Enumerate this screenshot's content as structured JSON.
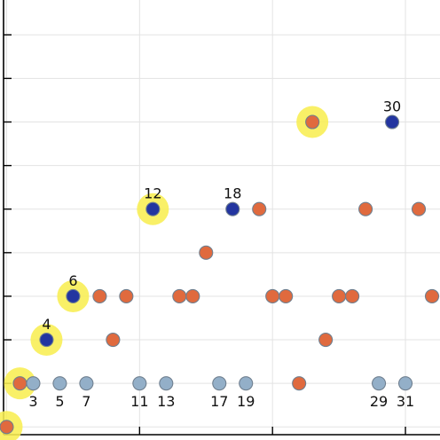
{
  "chart_data": {
    "type": "scatter",
    "title": "",
    "xlabel": "",
    "ylabel": "",
    "xlim": [
      -0.5,
      32.6
    ],
    "ylim": [
      0.7,
      10.8
    ],
    "x_ticks": [
      0,
      10,
      20,
      30
    ],
    "y_ticks": [
      1,
      2,
      3,
      4,
      5,
      6,
      7,
      8,
      9,
      10
    ],
    "grid": true,
    "series": [
      {
        "role": "orange points",
        "color": "#e06a3e",
        "points": [
          [
            0,
            1
          ],
          [
            1,
            2
          ],
          [
            7,
            4
          ],
          [
            8,
            3
          ],
          [
            9,
            4
          ],
          [
            13,
            4
          ],
          [
            14,
            4
          ],
          [
            15,
            5
          ],
          [
            19,
            6
          ],
          [
            20,
            4
          ],
          [
            21,
            4
          ],
          [
            22,
            2
          ],
          [
            23,
            8
          ],
          [
            24,
            3
          ],
          [
            25,
            4
          ],
          [
            26,
            4
          ],
          [
            27,
            6
          ],
          [
            31,
            6
          ],
          [
            32,
            4
          ]
        ]
      },
      {
        "role": "blue points",
        "color": "#2335a0",
        "points": [
          [
            3,
            3
          ],
          [
            5,
            4
          ],
          [
            11,
            6
          ],
          [
            17,
            6
          ],
          [
            29,
            8
          ]
        ]
      },
      {
        "role": "light blue points",
        "color": "#93afc8",
        "points": [
          [
            2,
            2
          ],
          [
            4,
            2
          ],
          [
            6,
            2
          ],
          [
            10,
            2
          ],
          [
            12,
            2
          ],
          [
            16,
            2
          ],
          [
            18,
            2
          ],
          [
            28,
            2
          ],
          [
            30,
            2
          ]
        ]
      }
    ],
    "highlighted": [
      [
        0,
        1
      ],
      [
        1,
        2
      ],
      [
        3,
        3
      ],
      [
        5,
        4
      ],
      [
        11,
        6
      ],
      [
        23,
        8
      ]
    ],
    "highlight_color": "#f8ee52",
    "annotations": [
      {
        "text": "3",
        "x": 2,
        "y": 2,
        "pos": "below"
      },
      {
        "text": "5",
        "x": 4,
        "y": 2,
        "pos": "below"
      },
      {
        "text": "7",
        "x": 6,
        "y": 2,
        "pos": "below"
      },
      {
        "text": "11",
        "x": 10,
        "y": 2,
        "pos": "below"
      },
      {
        "text": "13",
        "x": 12,
        "y": 2,
        "pos": "below"
      },
      {
        "text": "17",
        "x": 16,
        "y": 2,
        "pos": "below"
      },
      {
        "text": "19",
        "x": 18,
        "y": 2,
        "pos": "below"
      },
      {
        "text": "29",
        "x": 28,
        "y": 2,
        "pos": "below"
      },
      {
        "text": "31",
        "x": 30,
        "y": 2,
        "pos": "below"
      },
      {
        "text": "4",
        "x": 3,
        "y": 3,
        "pos": "above"
      },
      {
        "text": "6",
        "x": 5,
        "y": 4,
        "pos": "above"
      },
      {
        "text": "12",
        "x": 11,
        "y": 6,
        "pos": "above"
      },
      {
        "text": "18",
        "x": 17,
        "y": 6,
        "pos": "above"
      },
      {
        "text": "30",
        "x": 29,
        "y": 8,
        "pos": "above"
      }
    ]
  }
}
